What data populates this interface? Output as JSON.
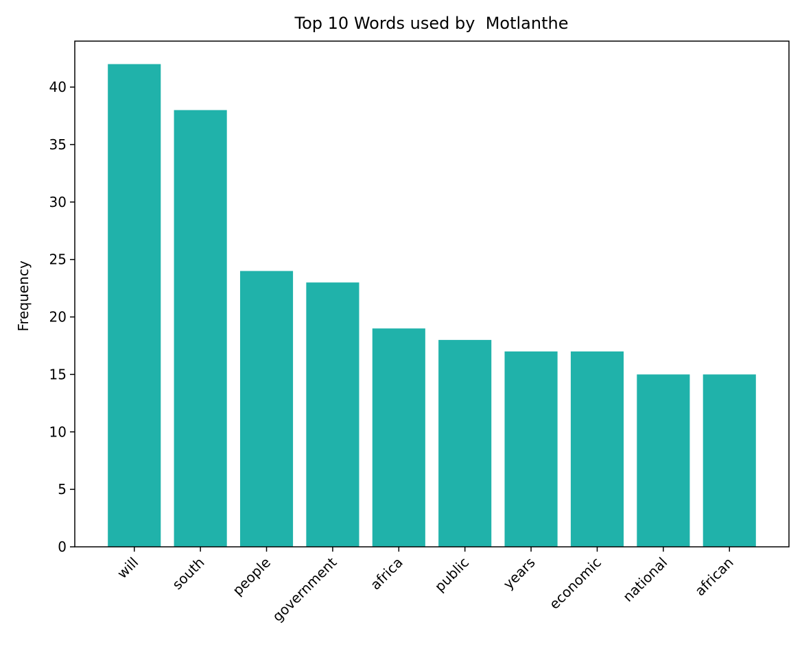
{
  "chart_data": {
    "type": "bar",
    "title": "Top 10 Words used by  Motlanthe",
    "xlabel": "",
    "ylabel": "Frequency",
    "categories": [
      "will",
      "south",
      "people",
      "government",
      "africa",
      "public",
      "years",
      "economic",
      "national",
      "african"
    ],
    "values": [
      42,
      38,
      24,
      23,
      19,
      18,
      17,
      17,
      15,
      15
    ],
    "ylim": [
      0,
      44
    ],
    "yticks": [
      0,
      5,
      10,
      15,
      20,
      25,
      30,
      35,
      40
    ],
    "bar_color": "#20b2aa",
    "grid": false,
    "x_tick_rotation_deg": 45
  }
}
